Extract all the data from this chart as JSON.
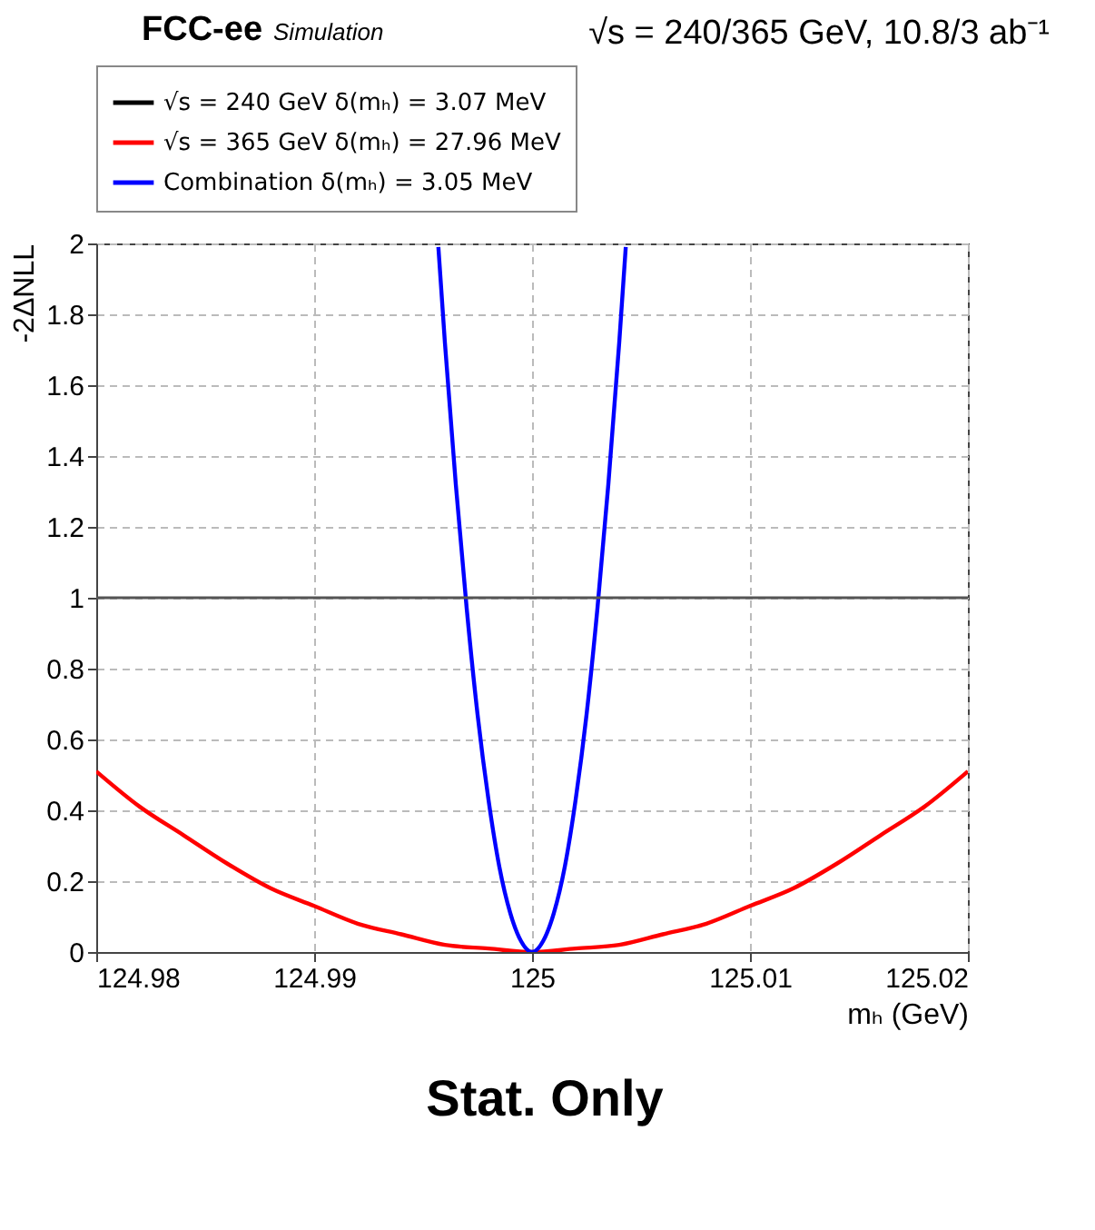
{
  "chart_data": {
    "type": "line",
    "title": "FCC-ee",
    "subtitle": "Simulation",
    "annotations": [
      "√s = 240/365 GeV, 10.8/3 ab⁻¹",
      "Stat. Only"
    ],
    "xlabel": "mₕ (GeV)",
    "ylabel": "-2ΔNLL",
    "xlim": [
      124.98,
      125.02
    ],
    "xticks": [
      124.98,
      124.99,
      125,
      125.01,
      125.02
    ],
    "ylim": [
      0,
      2
    ],
    "yticks": [
      0,
      0.2,
      0.4,
      0.6,
      0.8,
      1,
      1.2,
      1.4,
      1.6,
      1.8,
      2
    ],
    "grid": true,
    "legend": "top",
    "line_style": "solid",
    "marker": "none",
    "ref_lines": [
      {
        "axis": "y",
        "value": 1,
        "color": "#555555"
      }
    ],
    "series": [
      {
        "name": "√s = 240 GeV δ(mₕ) = 3.07 MeV",
        "color": "#000000"
      },
      {
        "name": "√s = 365 GeV δ(mₕ) = 27.96 MeV",
        "color": "#ff0000",
        "x": [
          124.98,
          124.982,
          124.984,
          124.986,
          124.988,
          124.99,
          124.992,
          124.994,
          124.996,
          124.998,
          125,
          125.002,
          125.004,
          125.006,
          125.008,
          125.01,
          125.012,
          125.014,
          125.016,
          125.018,
          125.02
        ],
        "values": [
          0.51,
          0.41,
          0.33,
          0.25,
          0.18,
          0.13,
          0.08,
          0.05,
          0.02,
          0.01,
          0,
          0.01,
          0.02,
          0.05,
          0.08,
          0.13,
          0.18,
          0.25,
          0.33,
          0.41,
          0.51
        ]
      },
      {
        "name": "Combination δ(mₕ) = 3.05 MeV",
        "color": "#0000ff",
        "x": [
          124.9957,
          124.996,
          124.9965,
          124.997,
          124.9975,
          124.998,
          124.9985,
          124.999,
          124.9995,
          125,
          125.0005,
          125.001,
          125.0015,
          125.002,
          125.0025,
          125.003,
          125.0035,
          125.004,
          125.0043
        ],
        "values": [
          1.99,
          1.72,
          1.32,
          0.97,
          0.67,
          0.43,
          0.24,
          0.11,
          0.03,
          0,
          0.03,
          0.11,
          0.24,
          0.43,
          0.67,
          0.97,
          1.32,
          1.72,
          1.99
        ]
      }
    ]
  }
}
